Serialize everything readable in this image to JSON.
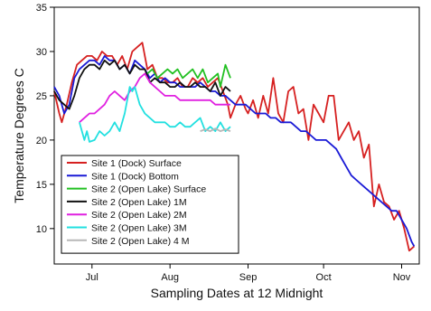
{
  "chart_data": {
    "type": "line",
    "title": "",
    "xlabel": "Sampling Dates at 12 Midnight",
    "ylabel": "Temperature Degrees C",
    "x_ticks": [
      "Jul",
      "Aug",
      "Sep",
      "Oct",
      "Nov"
    ],
    "x_tick_days": [
      15,
      46,
      77,
      107,
      138
    ],
    "xlim_days": [
      0,
      145
    ],
    "ylim": [
      6,
      35
    ],
    "y_ticks": [
      10,
      15,
      20,
      25,
      30,
      35
    ],
    "grid": false,
    "legend_position": "bottom-left",
    "series": [
      {
        "name": "Site 1 (Dock) Surface",
        "color": "#d62020",
        "x": [
          0,
          2,
          3,
          5,
          7,
          9,
          11,
          13,
          15,
          17,
          19,
          21,
          23,
          25,
          27,
          29,
          31,
          33,
          35,
          37,
          39,
          41,
          43,
          45,
          47,
          49,
          51,
          53,
          55,
          57,
          59,
          61,
          63,
          65,
          67,
          69,
          70,
          72,
          74,
          76,
          77,
          79,
          81,
          83,
          85,
          87,
          89,
          91,
          93,
          95,
          97,
          99,
          101,
          103,
          105,
          107,
          109,
          111,
          113,
          115,
          117,
          119,
          121,
          123,
          125,
          127,
          129,
          131,
          133,
          135,
          137,
          139,
          141,
          143
        ],
        "y": [
          25.5,
          23,
          22,
          24,
          26.5,
          28.5,
          29,
          29.5,
          29.5,
          29,
          30,
          29.5,
          29.5,
          28.5,
          29.5,
          28,
          30,
          30.5,
          31,
          28,
          28.5,
          27,
          27,
          26.5,
          26.5,
          27,
          26,
          26,
          27,
          26.5,
          27,
          26,
          26.5,
          27,
          25.5,
          24,
          22.5,
          24,
          25,
          23.5,
          23,
          24.5,
          22.5,
          25,
          23,
          27,
          23,
          22,
          25.5,
          26,
          23,
          23.5,
          20,
          24,
          23,
          22,
          25,
          25,
          20,
          21,
          22,
          20,
          21,
          18,
          19.5,
          12.5,
          15,
          13,
          12.5,
          11,
          12,
          10,
          7.5,
          8
        ]
      },
      {
        "name": "Site 1 (Dock) Bottom",
        "color": "#1a1ad6",
        "x": [
          0,
          2,
          4,
          6,
          8,
          10,
          12,
          14,
          16,
          18,
          20,
          22,
          24,
          26,
          28,
          30,
          32,
          34,
          36,
          38,
          40,
          42,
          44,
          46,
          48,
          50,
          52,
          54,
          56,
          58,
          60,
          62,
          64,
          66,
          68,
          70,
          72,
          74,
          76,
          78,
          80,
          82,
          84,
          86,
          88,
          90,
          92,
          94,
          96,
          98,
          100,
          102,
          104,
          106,
          108,
          110,
          112,
          114,
          116,
          118,
          120,
          122,
          124,
          126,
          128,
          130,
          132,
          134,
          136,
          138,
          140,
          142,
          143
        ],
        "y": [
          26,
          25,
          23,
          24,
          27,
          28,
          28.5,
          29,
          29,
          28.5,
          29.5,
          29,
          29,
          28,
          28.5,
          27.5,
          29,
          28.5,
          28,
          27,
          27.5,
          26.5,
          27,
          26.5,
          26.5,
          26,
          26,
          26,
          26,
          26.5,
          26,
          25.5,
          25.5,
          25,
          25,
          24.5,
          24,
          24,
          24,
          23.5,
          23,
          23,
          23,
          22.5,
          22.5,
          22,
          22,
          22,
          21.5,
          21,
          21,
          20.5,
          20,
          20,
          20,
          19.5,
          19,
          18,
          17,
          16,
          15.5,
          15,
          14.5,
          14,
          13.5,
          13,
          12.5,
          12,
          12,
          11,
          10,
          8.5,
          8
        ]
      },
      {
        "name": "Site 2 (Open Lake) Surface",
        "color": "#22c022",
        "x": [
          37,
          39,
          41,
          43,
          45,
          47,
          49,
          51,
          53,
          55,
          57,
          59,
          61,
          63,
          65,
          66,
          68,
          70
        ],
        "y": [
          27.5,
          28,
          27,
          27.5,
          28,
          27.5,
          28,
          27,
          27.5,
          28,
          27,
          28,
          26.5,
          27,
          27.5,
          26,
          28.5,
          27
        ]
      },
      {
        "name": "Site 2 (Open Lake) 1M",
        "color": "#111111",
        "x": [
          0,
          2,
          4,
          6,
          8,
          10,
          12,
          14,
          16,
          18,
          20,
          22,
          24,
          26,
          28,
          30,
          32,
          34,
          36,
          38,
          40,
          42,
          44,
          46,
          48,
          50,
          52,
          54,
          56,
          58,
          60,
          62,
          64,
          66,
          68,
          70
        ],
        "y": [
          25.5,
          24.5,
          24,
          23.5,
          25,
          27,
          28,
          28.5,
          28.5,
          28,
          29,
          28.5,
          29,
          28,
          28.5,
          27.5,
          28.5,
          28,
          28,
          26.5,
          27,
          26.5,
          26.5,
          26,
          26,
          26.5,
          26,
          26,
          26.5,
          26,
          26,
          25.5,
          26.5,
          25,
          26,
          25.5
        ]
      },
      {
        "name": "Site 2 (Open Lake) 2M",
        "color": "#e020e0",
        "x": [
          10,
          12,
          14,
          16,
          18,
          20,
          22,
          24,
          26,
          28,
          30,
          32,
          34,
          36,
          38,
          40,
          42,
          44,
          46,
          48,
          50,
          52,
          54,
          56,
          58,
          60,
          62,
          64,
          66,
          68,
          70
        ],
        "y": [
          22,
          22.5,
          23,
          23,
          23.5,
          24,
          25,
          25.5,
          25,
          24.5,
          25.5,
          26,
          27,
          27.5,
          26.5,
          26,
          25.5,
          25,
          25,
          25,
          24.5,
          24.5,
          24.5,
          24.5,
          24.5,
          24.5,
          24.5,
          24,
          24,
          24,
          24
        ]
      },
      {
        "name": "Site 2 (Open Lake) 3M",
        "color": "#22e0e0",
        "x": [
          10,
          12,
          13,
          14,
          16,
          18,
          20,
          22,
          24,
          26,
          28,
          30,
          31,
          32,
          33,
          34,
          36,
          38,
          40,
          42,
          44,
          46,
          48,
          50,
          52,
          54,
          56,
          58,
          60,
          62,
          64,
          66,
          68,
          70
        ],
        "y": [
          22,
          20,
          21,
          19.8,
          20,
          21,
          20.5,
          21,
          22,
          21,
          23,
          26,
          25.5,
          26,
          25,
          24,
          23,
          22.5,
          22,
          22,
          22,
          21.5,
          21.5,
          22,
          21.5,
          21.5,
          22,
          22.5,
          21,
          21.5,
          21,
          22,
          21,
          21.5
        ]
      },
      {
        "name": "Site 2 (Open Lake) 4 M",
        "color": "#b8b8b8",
        "x": [
          58,
          60,
          62,
          64,
          66,
          68,
          70
        ],
        "y": [
          21,
          21.2,
          21,
          21.3,
          21,
          21.2,
          21
        ]
      }
    ]
  }
}
